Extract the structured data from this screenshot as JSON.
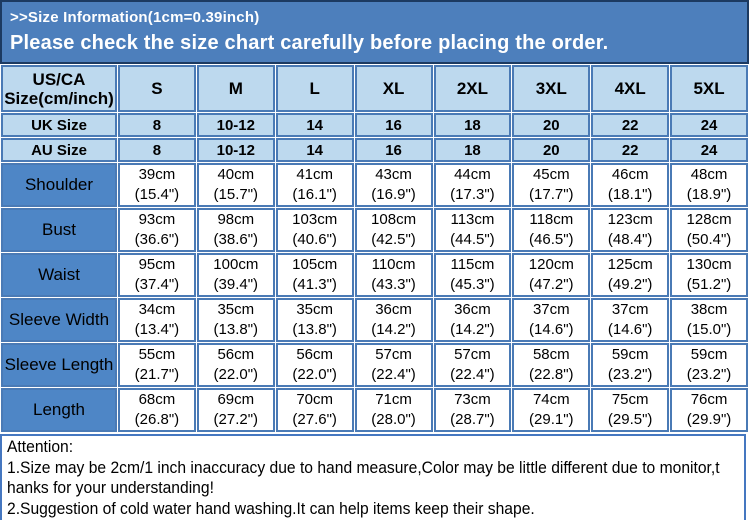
{
  "banner": {
    "line1": ">>Size Information(1cm=0.39inch)",
    "line2": "Please check the size chart carefully before placing the order."
  },
  "colors": {
    "banner_bg": "#4d7fbc",
    "banner_border": "#1c3a61",
    "header_row_bg": "#bdd9ee",
    "label_column_bg": "#4e86c6",
    "grid_border": "#4a7ab5",
    "attention_border": "#4577c0",
    "banner_text": "#ffffff",
    "table_text": "#000000"
  },
  "size_chart": {
    "corner": {
      "line1": "US/CA",
      "line2": "Size(cm/inch)"
    },
    "columns": [
      "S",
      "M",
      "L",
      "XL",
      "2XL",
      "3XL",
      "4XL",
      "5XL"
    ],
    "uk_row": {
      "label": "UK Size",
      "values": [
        "8",
        "10-12",
        "14",
        "16",
        "18",
        "20",
        "22",
        "24"
      ]
    },
    "au_row": {
      "label": "AU Size",
      "values": [
        "8",
        "10-12",
        "14",
        "16",
        "18",
        "20",
        "22",
        "24"
      ]
    },
    "measurements": [
      {
        "label": "Shoulder",
        "cm": [
          "39cm",
          "40cm",
          "41cm",
          "43cm",
          "44cm",
          "45cm",
          "46cm",
          "48cm"
        ],
        "inch": [
          "(15.4\")",
          "(15.7\")",
          "(16.1\")",
          "(16.9\")",
          "(17.3\")",
          "(17.7\")",
          "(18.1\")",
          "(18.9\")"
        ]
      },
      {
        "label": "Bust",
        "cm": [
          "93cm",
          "98cm",
          "103cm",
          "108cm",
          "113cm",
          "118cm",
          "123cm",
          "128cm"
        ],
        "inch": [
          "(36.6\")",
          "(38.6\")",
          "(40.6\")",
          "(42.5\")",
          "(44.5\")",
          "(46.5\")",
          "(48.4\")",
          "(50.4\")"
        ]
      },
      {
        "label": "Waist",
        "cm": [
          "95cm",
          "100cm",
          "105cm",
          "110cm",
          "115cm",
          "120cm",
          "125cm",
          "130cm"
        ],
        "inch": [
          "(37.4\")",
          "(39.4\")",
          "(41.3\")",
          "(43.3\")",
          "(45.3\")",
          "(47.2\")",
          "(49.2\")",
          "(51.2\")"
        ]
      },
      {
        "label": "Sleeve Width",
        "cm": [
          "34cm",
          "35cm",
          "35cm",
          "36cm",
          "36cm",
          "37cm",
          "37cm",
          "38cm"
        ],
        "inch": [
          "(13.4\")",
          "(13.8\")",
          "(13.8\")",
          "(14.2\")",
          "(14.2\")",
          "(14.6\")",
          "(14.6\")",
          "(15.0\")"
        ]
      },
      {
        "label": "Sleeve Length",
        "cm": [
          "55cm",
          "56cm",
          "56cm",
          "57cm",
          "57cm",
          "58cm",
          "59cm",
          "59cm"
        ],
        "inch": [
          "(21.7\")",
          "(22.0\")",
          "(22.0\")",
          "(22.4\")",
          "(22.4\")",
          "(22.8\")",
          "(23.2\")",
          "(23.2\")"
        ]
      },
      {
        "label": "Length",
        "cm": [
          "68cm",
          "69cm",
          "70cm",
          "71cm",
          "73cm",
          "74cm",
          "75cm",
          "76cm"
        ],
        "inch": [
          "(26.8\")",
          "(27.2\")",
          "(27.6\")",
          "(28.0\")",
          "(28.7\")",
          "(29.1\")",
          "(29.5\")",
          "(29.9\")"
        ]
      }
    ]
  },
  "attention": {
    "lines": [
      "Attention:",
      "1.Size may be 2cm/1 inch inaccuracy due to hand measure,Color may be little different due to monitor,t",
      "hanks for your understanding!",
      "2.Suggestion of cold water hand washing.It can help items keep their shape."
    ]
  }
}
